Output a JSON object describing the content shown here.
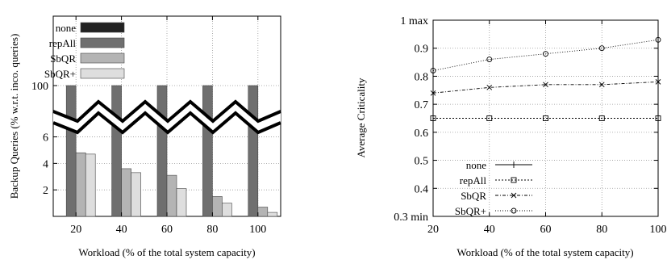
{
  "chart_data": [
    {
      "type": "bar",
      "xlabel": "Workload (% of the total system capacity)",
      "ylabel": "Backup Queries (% w.r.t. inco. queries)",
      "categories": [
        "20",
        "40",
        "60",
        "80",
        "100"
      ],
      "y_tick_labels": [
        "2",
        "4",
        "6",
        "100"
      ],
      "broken_axis": true,
      "lower_ylim": [
        0,
        7.8
      ],
      "upper_ylim": [
        80,
        100
      ],
      "legend_position": "top-left",
      "grid": true,
      "series": [
        {
          "name": "none",
          "color": "#222222",
          "values": [
            0,
            0,
            0,
            0,
            0
          ]
        },
        {
          "name": "repAll",
          "color": "#6f6f6f",
          "values": [
            100,
            100,
            100,
            100,
            100
          ]
        },
        {
          "name": "SbQR",
          "color": "#b4b4b4",
          "values": [
            4.8,
            3.6,
            3.1,
            1.5,
            0.7
          ]
        },
        {
          "name": "SbQR+",
          "color": "#dedede",
          "values": [
            4.7,
            3.3,
            2.1,
            1.0,
            0.3
          ]
        }
      ]
    },
    {
      "type": "line",
      "xlabel": "Workload (% of the total system capacity)",
      "ylabel": "Average Criticality",
      "x": [
        20,
        40,
        60,
        80,
        100
      ],
      "xlim": [
        20,
        100
      ],
      "ylim": [
        0.3,
        1.0
      ],
      "x_tick_labels": [
        "20",
        "40",
        "60",
        "80",
        "100"
      ],
      "y_tick_labels": [
        "0.3 min",
        "0.4",
        "0.5",
        "0.6",
        "0.7",
        "0.8",
        "0.9",
        "1 max"
      ],
      "legend_position": "bottom-left",
      "grid": true,
      "series": [
        {
          "name": "none",
          "marker": "plus",
          "values": [
            null,
            null,
            null,
            null,
            null
          ]
        },
        {
          "name": "repAll",
          "marker": "square",
          "values": [
            0.65,
            0.65,
            0.65,
            0.65,
            0.65
          ]
        },
        {
          "name": "SbQR",
          "marker": "x",
          "values": [
            0.74,
            0.76,
            0.77,
            0.77,
            0.78
          ]
        },
        {
          "name": "SbQR+",
          "marker": "circle",
          "values": [
            0.82,
            0.86,
            0.88,
            0.9,
            0.93
          ]
        }
      ]
    }
  ]
}
